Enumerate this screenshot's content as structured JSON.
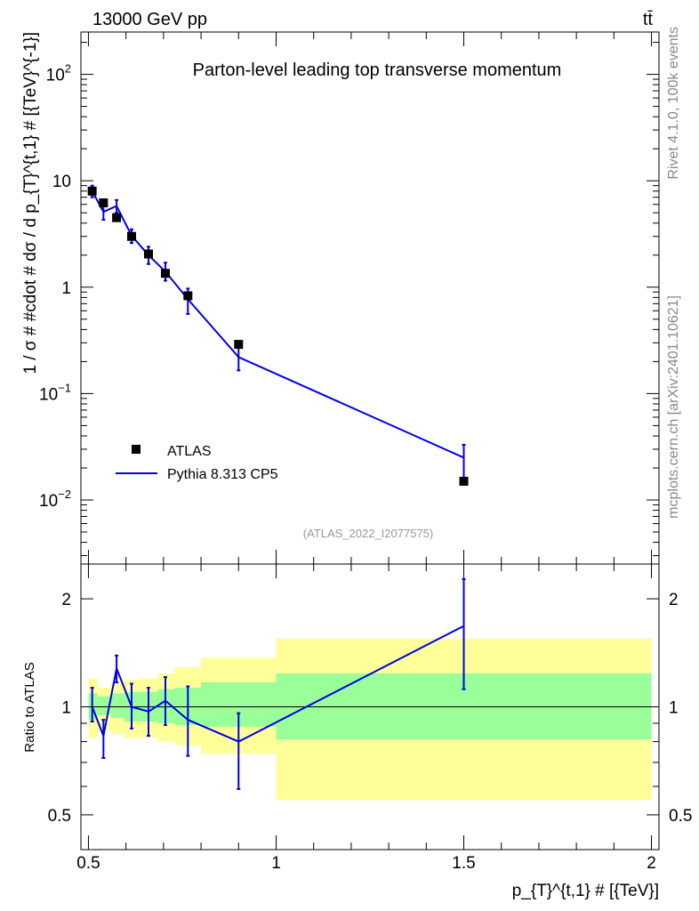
{
  "header": {
    "left": "13000 GeV pp",
    "right": "tt̄"
  },
  "side_labels": {
    "rivet": "Rivet 4.1.0,  100k events",
    "source": "mcplots.cern.ch [arXiv:2401.10621]"
  },
  "colors": {
    "data": "#000000",
    "mc": "#0000e6",
    "band_inner": "#99ff99",
    "band_outer": "#ffff99",
    "axis": "#000000",
    "watermark": "#999999",
    "side": "#888888"
  },
  "chart_data": [
    {
      "panel": "main",
      "type": "scatter",
      "title": "Parton-level leading top transverse momentum",
      "watermark": "(ATLAS_2022_I2077575)",
      "ylabel": "1 / σ # #cdot # dσ / d p_{T}^{t,1} # [{TeV}^{-1}]",
      "yscale": "log",
      "ylim": [
        0.0025,
        250
      ],
      "xlim": [
        0.48,
        2.02
      ],
      "ytick_labels": [
        {
          "value": 0.01,
          "base": "10",
          "exp": "−2"
        },
        {
          "value": 0.1,
          "base": "10",
          "exp": "−1"
        },
        {
          "value": 1,
          "base": "1",
          "exp": ""
        },
        {
          "value": 10,
          "base": "10",
          "exp": ""
        },
        {
          "value": 100,
          "base": "10",
          "exp": "2"
        }
      ],
      "legend": {
        "position": "lower-left",
        "entries": [
          "ATLAS",
          "Pythia 8.313 CP5"
        ]
      },
      "series": [
        {
          "name": "ATLAS",
          "style": "square-marker",
          "x": [
            0.51,
            0.54,
            0.575,
            0.615,
            0.66,
            0.705,
            0.765,
            0.9,
            1.5
          ],
          "y": [
            8.0,
            6.2,
            4.5,
            3.0,
            2.05,
            1.35,
            0.83,
            0.29,
            0.015
          ]
        },
        {
          "name": "Pythia 8.313 CP5",
          "style": "line-with-errorbars",
          "x": [
            0.51,
            0.54,
            0.575,
            0.615,
            0.66,
            0.705,
            0.765,
            0.9,
            1.5
          ],
          "y": [
            8.0,
            5.1,
            5.8,
            3.05,
            2.0,
            1.4,
            0.77,
            0.22,
            0.025
          ],
          "yerr_low": [
            7.0,
            4.3,
            5.0,
            2.6,
            1.65,
            1.15,
            0.56,
            0.165,
            0.015
          ],
          "yerr_high": [
            9.0,
            5.9,
            6.6,
            3.5,
            2.4,
            1.7,
            0.97,
            0.28,
            0.033
          ]
        }
      ]
    },
    {
      "panel": "ratio",
      "type": "line",
      "ylabel": "Ratio to ATLAS",
      "xlabel": "p_{T}^{t,1} # [{TeV}]",
      "yscale": "log",
      "ylim": [
        0.4,
        2.5
      ],
      "xlim": [
        0.48,
        2.02
      ],
      "ytick_labels": [
        "0.5",
        "1",
        "2"
      ],
      "yticks": [
        0.5,
        1,
        2
      ],
      "xticks": [
        0.5,
        1,
        1.5,
        2
      ],
      "xtick_labels": [
        "0.5",
        "1",
        "1.5",
        "2"
      ],
      "bands": {
        "edges": [
          0.5,
          0.525,
          0.56,
          0.595,
          0.64,
          0.685,
          0.73,
          0.8,
          1.0,
          2.0
        ],
        "inner_low": [
          0.92,
          0.95,
          0.93,
          0.91,
          0.91,
          0.9,
          0.89,
          0.88,
          0.81
        ],
        "inner_high": [
          1.09,
          1.07,
          1.09,
          1.1,
          1.1,
          1.12,
          1.13,
          1.17,
          1.24
        ],
        "outer_low": [
          0.82,
          0.86,
          0.84,
          0.82,
          0.82,
          0.8,
          0.78,
          0.74,
          0.55
        ],
        "outer_high": [
          1.2,
          1.13,
          1.17,
          1.19,
          1.2,
          1.24,
          1.29,
          1.37,
          1.55
        ]
      },
      "series": [
        {
          "name": "Pythia 8.313 CP5",
          "x": [
            0.51,
            0.54,
            0.575,
            0.615,
            0.66,
            0.705,
            0.765,
            0.9,
            1.5
          ],
          "y": [
            1.0,
            0.83,
            1.28,
            1.0,
            0.97,
            1.04,
            0.92,
            0.8,
            1.68
          ],
          "yerr_low": [
            0.91,
            0.72,
            1.17,
            0.87,
            0.83,
            0.89,
            0.73,
            0.59,
            1.12
          ],
          "yerr_high": [
            1.13,
            0.92,
            1.39,
            1.16,
            1.13,
            1.21,
            1.14,
            0.96,
            2.27
          ]
        }
      ]
    }
  ]
}
